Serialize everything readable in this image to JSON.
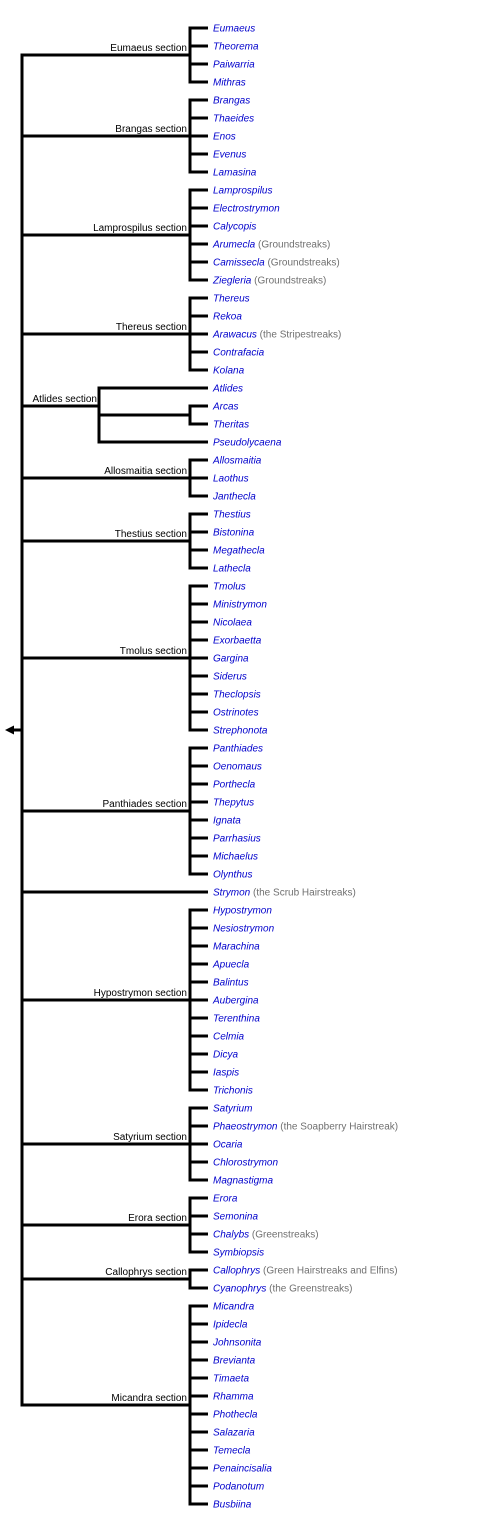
{
  "colors": {
    "line": "#000000",
    "genus_link": "#0000cc",
    "note": "#707070",
    "section_label": "#000000"
  },
  "root": {
    "collapse_icon": "left-arrow-icon"
  },
  "sections": [
    {
      "label": "Eumaeus section",
      "taxa": [
        {
          "name": "Eumaeus"
        },
        {
          "name": "Theorema"
        },
        {
          "name": "Paiwarria"
        },
        {
          "name": "Mithras"
        }
      ]
    },
    {
      "label": "Brangas section",
      "taxa": [
        {
          "name": "Brangas"
        },
        {
          "name": "Thaeides"
        },
        {
          "name": "Enos"
        },
        {
          "name": "Evenus"
        },
        {
          "name": "Lamasina"
        }
      ]
    },
    {
      "label": "Lamprospilus section",
      "taxa": [
        {
          "name": "Lamprospilus"
        },
        {
          "name": "Electrostrymon"
        },
        {
          "name": "Calycopis"
        },
        {
          "name": "Arumecla",
          "note": "(Groundstreaks)"
        },
        {
          "name": "Camissecla",
          "note": "(Groundstreaks)"
        },
        {
          "name": "Ziegleria",
          "note": "(Groundstreaks)"
        }
      ]
    },
    {
      "label": "Thereus section",
      "taxa": [
        {
          "name": "Thereus"
        },
        {
          "name": "Rekoa"
        },
        {
          "name": "Arawacus",
          "note": "(the Stripestreaks)"
        },
        {
          "name": "Contrafacia"
        },
        {
          "name": "Kolana"
        }
      ]
    },
    {
      "label": "Atlides section",
      "nested": true,
      "taxa": [
        {
          "name": "Atlides"
        },
        {
          "name": "Arcas",
          "sub": true
        },
        {
          "name": "Theritas",
          "sub": true
        },
        {
          "name": "Pseudolycaena"
        }
      ]
    },
    {
      "label": "Allosmaitia section",
      "taxa": [
        {
          "name": "Allosmaitia"
        },
        {
          "name": "Laothus"
        },
        {
          "name": "Janthecla"
        }
      ]
    },
    {
      "label": "Thestius section",
      "taxa": [
        {
          "name": "Thestius"
        },
        {
          "name": "Bistonina"
        },
        {
          "name": "Megathecla"
        },
        {
          "name": "Lathecla"
        }
      ]
    },
    {
      "label": "Tmolus section",
      "taxa": [
        {
          "name": "Tmolus"
        },
        {
          "name": "Ministrymon"
        },
        {
          "name": "Nicolaea"
        },
        {
          "name": "Exorbaetta"
        },
        {
          "name": "Gargina"
        },
        {
          "name": "Siderus"
        },
        {
          "name": "Theclopsis"
        },
        {
          "name": "Ostrinotes"
        },
        {
          "name": "Strephonota"
        }
      ]
    },
    {
      "label": "Panthiades section",
      "taxa": [
        {
          "name": "Panthiades"
        },
        {
          "name": "Oenomaus"
        },
        {
          "name": "Porthecla"
        },
        {
          "name": "Thepytus"
        },
        {
          "name": "Ignata"
        },
        {
          "name": "Parrhasius"
        },
        {
          "name": "Michaelus"
        },
        {
          "name": "Olynthus"
        }
      ]
    },
    {
      "label": "",
      "single": true,
      "taxa": [
        {
          "name": "Strymon",
          "note": "(the Scrub Hairstreaks)"
        }
      ]
    },
    {
      "label": "Hypostrymon section",
      "taxa": [
        {
          "name": "Hypostrymon"
        },
        {
          "name": "Nesiostrymon"
        },
        {
          "name": "Marachina"
        },
        {
          "name": "Apuecla"
        },
        {
          "name": "Balintus"
        },
        {
          "name": "Aubergina"
        },
        {
          "name": "Terenthina"
        },
        {
          "name": "Celmia"
        },
        {
          "name": "Dicya"
        },
        {
          "name": "Iaspis"
        },
        {
          "name": "Trichonis"
        }
      ]
    },
    {
      "label": "Satyrium section",
      "taxa": [
        {
          "name": "Satyrium"
        },
        {
          "name": "Phaeostrymon",
          "note": "(the Soapberry Hairstreak)"
        },
        {
          "name": "Ocaria"
        },
        {
          "name": "Chlorostrymon"
        },
        {
          "name": "Magnastigma"
        }
      ]
    },
    {
      "label": "Erora section",
      "taxa": [
        {
          "name": "Erora"
        },
        {
          "name": "Semonina"
        },
        {
          "name": "Chalybs",
          "note": "(Greenstreaks)"
        },
        {
          "name": "Symbiopsis"
        }
      ]
    },
    {
      "label": "Callophrys section",
      "taxa": [
        {
          "name": "Callophrys",
          "note": "(Green Hairstreaks and Elfins)"
        },
        {
          "name": "Cyanophrys",
          "note": "(the Greenstreaks)"
        }
      ]
    },
    {
      "label": "Micandra section",
      "taxa": [
        {
          "name": "Micandra"
        },
        {
          "name": "Ipidecla"
        },
        {
          "name": "Johnsonita"
        },
        {
          "name": "Brevianta"
        },
        {
          "name": "Timaeta"
        },
        {
          "name": "Rhamma"
        },
        {
          "name": "Phothecla"
        },
        {
          "name": "Salazaria"
        },
        {
          "name": "Temecla"
        },
        {
          "name": "Penaincisalia"
        },
        {
          "name": "Podanotum"
        },
        {
          "name": "Busbiina"
        }
      ]
    }
  ]
}
